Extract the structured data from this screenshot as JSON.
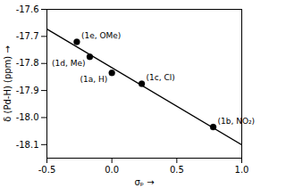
{
  "chart_data": {
    "type": "scatter",
    "xlabel": "σₚ",
    "ylabel": "δ (Pd-H) (ppm)",
    "xlim": [
      -0.5,
      1.0
    ],
    "ylim": [
      -18.15,
      -17.6
    ],
    "xticks": [
      -0.5,
      {
        "value": 0,
        "label": "0.0"
      },
      0.5,
      {
        "value": 1,
        "label": "1.0"
      }
    ],
    "yticks": [
      -18.1,
      {
        "value": -18,
        "label": "-18.0"
      },
      -17.9,
      -17.8,
      -17.7,
      -17.6
    ],
    "points": {
      "x": [
        -0.27,
        -0.17,
        0.0,
        0.23,
        0.78
      ],
      "values": [
        -17.72,
        -17.775,
        -17.835,
        -17.875,
        -18.035
      ],
      "labels": [
        "(1e, OMe)",
        "(1d, Me)",
        "(1a, H)",
        "(1c, Cl)",
        "(1b, NO₂)"
      ],
      "color": "black"
    },
    "fit_line": {
      "x": [
        -0.5,
        1.0
      ],
      "values": [
        -17.6729,
        -18.1006
      ],
      "color": "black"
    }
  }
}
